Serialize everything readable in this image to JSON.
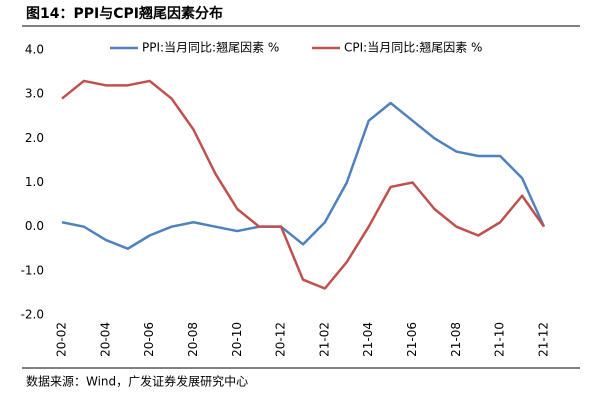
{
  "title": "图14：PPI与CPI翘尾因素分布",
  "source": "数据来源：Wind，广发证券发展研究中心",
  "chart_data": {
    "type": "line",
    "categories": [
      "20-02",
      null,
      "20-04",
      null,
      "20-06",
      null,
      "20-08",
      null,
      "20-10",
      null,
      "20-12",
      null,
      "21-02",
      null,
      "21-04",
      null,
      "21-06",
      null,
      "21-08",
      null,
      "21-10",
      null,
      "21-12"
    ],
    "series": [
      {
        "name": "PPI:当月同比:翘尾因素 %",
        "color": "#4f81bd",
        "values": [
          0.1,
          0,
          -0.3,
          -0.5,
          -0.2,
          0,
          0.1,
          0,
          -0.1,
          0,
          0,
          -0.4,
          0.1,
          1.0,
          2.4,
          2.8,
          2.4,
          2.0,
          1.7,
          1.6,
          1.6,
          1.1,
          0
        ]
      },
      {
        "name": "CPI:当月同比:翘尾因素 %",
        "color": "#c0504d",
        "values": [
          2.9,
          3.3,
          3.2,
          3.2,
          3.3,
          2.9,
          2.2,
          1.2,
          0.4,
          0,
          0,
          -1.2,
          -1.4,
          -0.8,
          0,
          0.9,
          1.0,
          0.4,
          0,
          -0.2,
          0.1,
          0.7,
          0
        ]
      }
    ],
    "ylim": [
      -2,
      4
    ],
    "yticks": [
      {
        "value": -2,
        "label": "-2.0"
      },
      {
        "value": -1,
        "label": "-1.0"
      },
      {
        "value": 0,
        "label": "0.0"
      },
      {
        "value": 1,
        "label": "1.0"
      },
      {
        "value": 2,
        "label": "2.0"
      },
      {
        "value": 3,
        "label": "3.0"
      },
      {
        "value": 4,
        "label": "4.0"
      }
    ],
    "grid": false,
    "legend": "top"
  }
}
